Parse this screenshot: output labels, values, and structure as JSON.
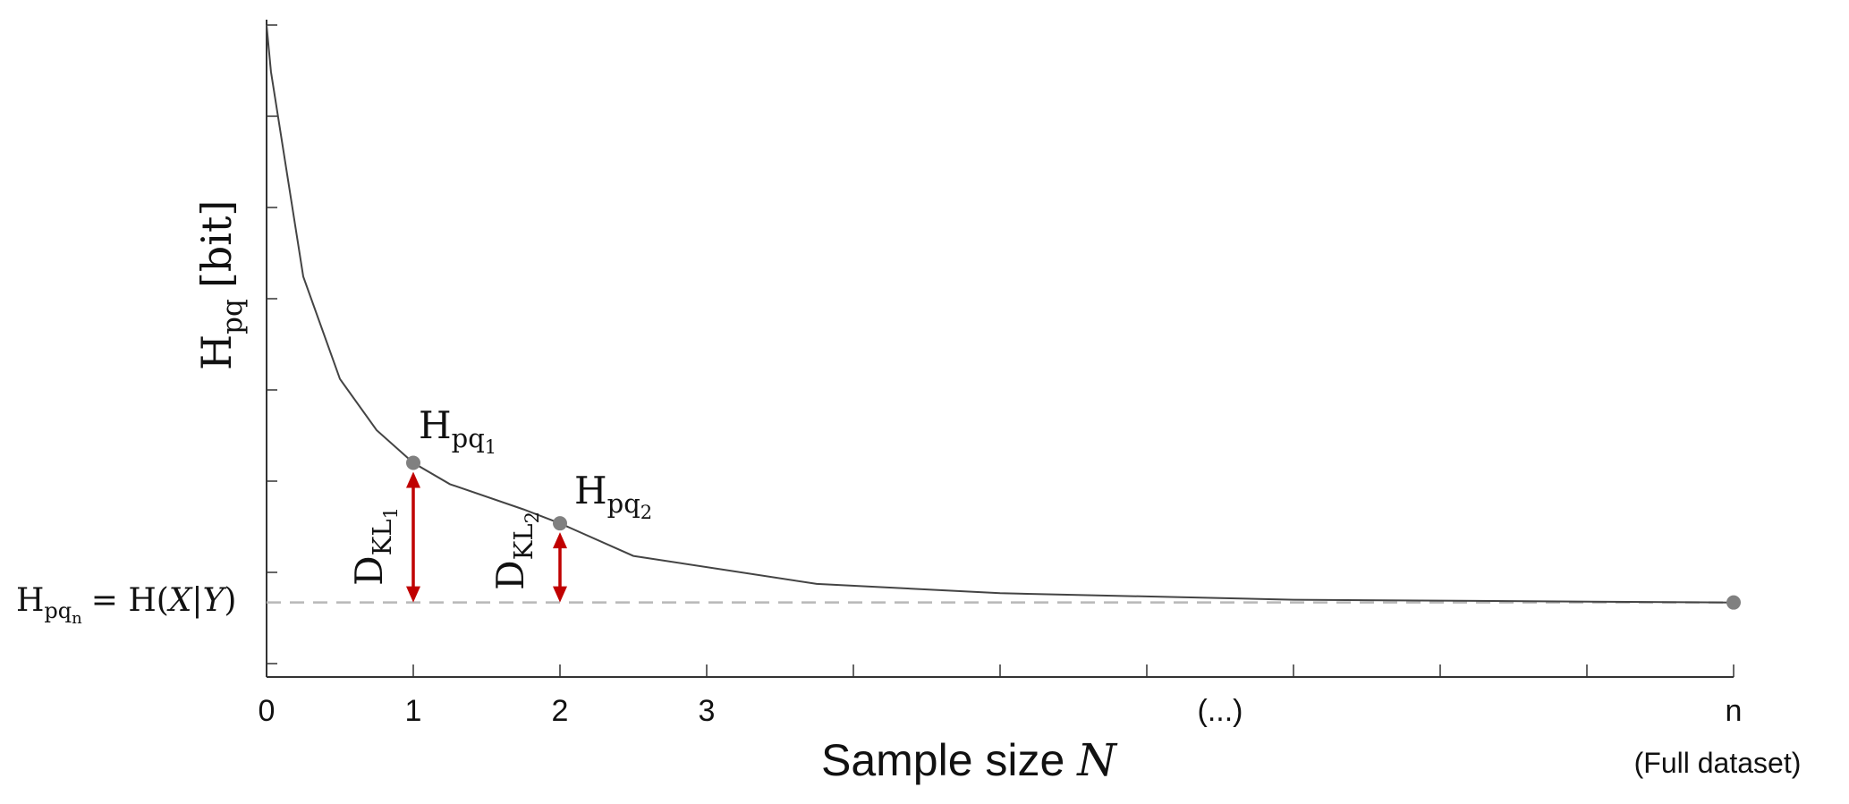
{
  "chart_data": {
    "type": "line",
    "xlabel": "Sample size",
    "xlabel_var": "N",
    "ylabel": {
      "base": "H",
      "sub": "pq",
      "unit": "[bit]"
    },
    "x_tick_labels": [
      {
        "x": 0,
        "label": "0"
      },
      {
        "x": 1,
        "label": "1"
      },
      {
        "x": 2,
        "label": "2"
      },
      {
        "x": 3,
        "label": "3"
      },
      {
        "x": 6.5,
        "label": "(...)"
      },
      {
        "x": 10,
        "label": "n"
      }
    ],
    "x_end_note": "(Full dataset)",
    "xlim": [
      0,
      10
    ],
    "ylim": [
      0,
      7
    ],
    "x": [
      0,
      0.03,
      0.25,
      0.5,
      0.75,
      1,
      1.25,
      1.75,
      2,
      2.5,
      3.75,
      5,
      7,
      10
    ],
    "y": [
      7.0,
      6.5,
      4.3,
      3.2,
      2.65,
      2.3,
      2.07,
      1.8,
      1.65,
      1.3,
      1.0,
      0.9,
      0.83,
      0.8
    ],
    "asymptote": {
      "y": 0.8,
      "label": {
        "lhs_base": "H",
        "lhs_sub": "pq",
        "lhs_subsub": "n",
        "rhs": "= H(",
        "var1": "X",
        "bar": "|",
        "var2": "Y",
        "close": ")"
      }
    },
    "marked_points": [
      {
        "x": 1,
        "y": 2.3,
        "label": {
          "base": "H",
          "sub": "pq",
          "subsub": "1"
        }
      },
      {
        "x": 2,
        "y": 1.65,
        "label": {
          "base": "H",
          "sub": "pq",
          "subsub": "2"
        }
      },
      {
        "x": 10,
        "y": 0.8
      }
    ],
    "divergence_arrows": [
      {
        "x": 1,
        "from": 0.8,
        "to": 2.3,
        "label": {
          "base": "D",
          "sub": "KL",
          "subsub": "1"
        }
      },
      {
        "x": 2,
        "from": 0.8,
        "to": 1.65,
        "label": {
          "base": "D",
          "sub": "KL",
          "subsub": "2"
        }
      }
    ],
    "grid": false,
    "colors": {
      "curve": "#444444",
      "points": "#808080",
      "arrows": "#c00000",
      "asymptote": "#b8b8b8"
    }
  }
}
